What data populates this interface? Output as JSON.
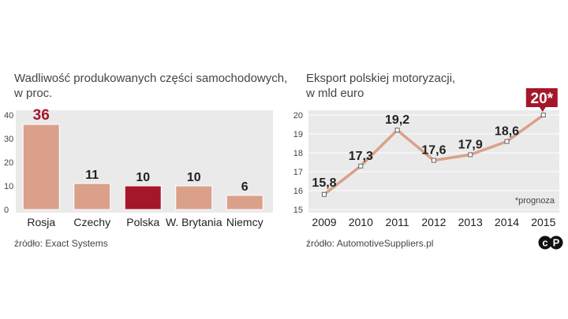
{
  "left_chart": {
    "title_line1": "Wadliwość produkowanych części samochodowych,",
    "title_line2": "w proc.",
    "source": "źródło: Exact Systems"
  },
  "right_chart": {
    "title_line1": "Eksport polskiej motoryzacji,",
    "title_line2": "w mld euro",
    "source": "źródło: AutomotiveSuppliers.pl",
    "note": "*prognoza",
    "highlight_label": "20*"
  },
  "logo_text": "cP",
  "colors": {
    "bar": "#dba08a",
    "bar_highlight": "#a4172b",
    "line": "#dba08a",
    "accent_text": "#a4172b",
    "panel": "#eaeaea"
  },
  "chart_data": [
    {
      "type": "bar",
      "title": "Wadliwość produkowanych części samochodowych, w proc.",
      "categories": [
        "Rosja",
        "Czechy",
        "Polska",
        "W. Brytania",
        "Niemcy"
      ],
      "values": [
        36,
        11,
        10,
        10,
        6
      ],
      "value_labels": [
        "36",
        "11",
        "10",
        "10",
        "6"
      ],
      "highlight_index": 2,
      "ylim": [
        0,
        40
      ],
      "yticks": [
        0,
        10,
        20,
        30,
        40
      ],
      "grid": false
    },
    {
      "type": "line",
      "title": "Eksport polskiej motoryzacji, w mld euro",
      "x": [
        "2009",
        "2010",
        "2011",
        "2012",
        "2013",
        "2014",
        "2015"
      ],
      "values": [
        15.8,
        17.3,
        19.2,
        17.6,
        17.9,
        18.6,
        20
      ],
      "value_labels": [
        "15,8",
        "17,3",
        "19,2",
        "17,6",
        "17,9",
        "18,6",
        "20*"
      ],
      "ylim": [
        15,
        20
      ],
      "yticks": [
        15,
        16,
        17,
        18,
        19,
        20
      ],
      "grid": true
    }
  ]
}
